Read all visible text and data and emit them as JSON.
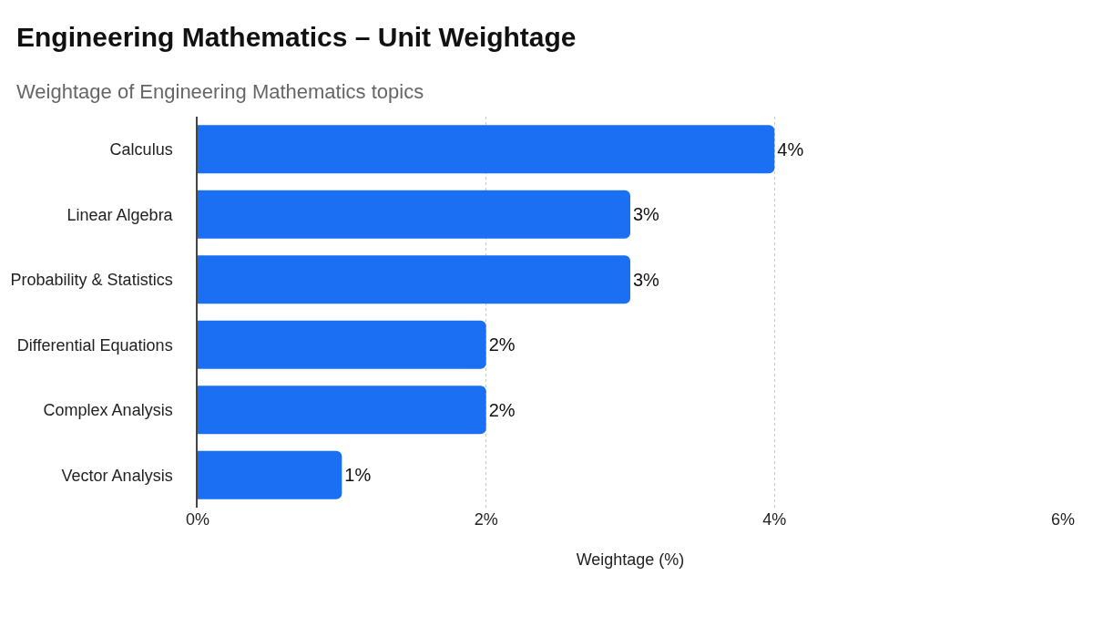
{
  "chart_data": {
    "type": "bar",
    "orientation": "horizontal",
    "title": "Engineering Mathematics – Unit Weightage",
    "subtitle": "Weightage of Engineering Mathematics topics",
    "xlabel": "Weightage (%)",
    "categories": [
      "Calculus",
      "Linear Algebra",
      "Probability & Statistics",
      "Differential Equations",
      "Complex Analysis",
      "Vector Analysis"
    ],
    "values": [
      4,
      3,
      3,
      2,
      2,
      1
    ],
    "value_labels": [
      "4%",
      "3%",
      "3%",
      "2%",
      "2%",
      "1%"
    ],
    "color": "#1a6ff2",
    "xlim": [
      0,
      6
    ],
    "xticks": [
      {
        "value": 0,
        "label": "0%"
      },
      {
        "value": 2,
        "label": "2%"
      },
      {
        "value": 4,
        "label": "4%"
      },
      {
        "value": 6,
        "label": "6%"
      }
    ],
    "grid": "x",
    "legend": false
  }
}
